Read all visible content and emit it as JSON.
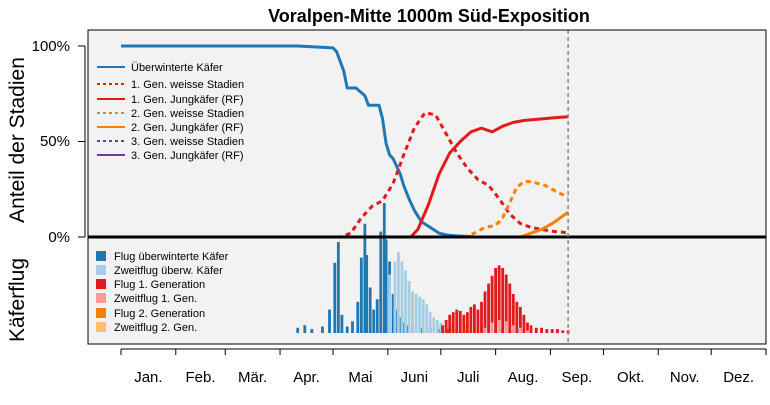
{
  "chart_data": {
    "type": "line",
    "title": "Voralpen-Mitte 1000m Süd-Exposition",
    "ylabel_top": "Anteil der Stadien",
    "ylabel_bottom": "Käferflug",
    "yticks": [
      "100%",
      "50%",
      "0%"
    ],
    "months": [
      "Jan.",
      "Feb.",
      "Mär.",
      "Apr.",
      "Mai",
      "Juni",
      "Juli",
      "Aug.",
      "Sep.",
      "Okt.",
      "Nov.",
      "Dez."
    ],
    "x_unit": "day of year",
    "xlim": [
      0,
      365
    ],
    "ylim_top": [
      0,
      1
    ],
    "current_day": 253,
    "grid": false,
    "legend_position": "top-left",
    "series": [
      {
        "name": "Überwinterte Käfer",
        "color": "#1f78b4",
        "dash": "solid",
        "x": [
          0,
          100,
          120,
          122,
          126,
          128,
          133,
          138,
          140,
          146,
          148,
          150,
          152,
          154,
          156,
          158,
          160,
          163,
          166,
          170,
          175,
          180,
          185,
          190,
          195,
          200
        ],
        "y": [
          1.0,
          1.0,
          0.99,
          0.97,
          0.87,
          0.78,
          0.78,
          0.74,
          0.69,
          0.69,
          0.62,
          0.49,
          0.43,
          0.41,
          0.37,
          0.33,
          0.27,
          0.2,
          0.14,
          0.08,
          0.05,
          0.02,
          0.01,
          0.006,
          0.003,
          0.0
        ]
      },
      {
        "name": "1. Gen. weisse Stadien",
        "color": "#e31a1c",
        "dash": "dotted",
        "x": [
          0,
          124,
          130,
          136,
          142,
          148,
          154,
          160,
          166,
          172,
          178,
          184,
          190,
          196,
          202,
          208,
          214,
          220,
          226,
          232,
          238,
          244,
          250,
          253
        ],
        "y": [
          0,
          0,
          0.02,
          0.1,
          0.16,
          0.19,
          0.28,
          0.43,
          0.57,
          0.65,
          0.64,
          0.54,
          0.44,
          0.36,
          0.3,
          0.27,
          0.2,
          0.12,
          0.07,
          0.05,
          0.04,
          0.03,
          0.025,
          0.02
        ]
      },
      {
        "name": "1. Gen. Jungkäfer (RF)",
        "color": "#e31a1c",
        "dash": "solid",
        "x": [
          0,
          164,
          168,
          174,
          180,
          186,
          192,
          198,
          204,
          210,
          216,
          222,
          228,
          234,
          240,
          246,
          253
        ],
        "y": [
          0,
          0,
          0.04,
          0.17,
          0.33,
          0.44,
          0.5,
          0.55,
          0.57,
          0.55,
          0.58,
          0.6,
          0.61,
          0.615,
          0.62,
          0.625,
          0.63
        ]
      },
      {
        "name": "2. Gen. weisse Stadien",
        "color": "#ff7f00",
        "dash": "dotted",
        "x": [
          0,
          194,
          200,
          206,
          212,
          216,
          220,
          224,
          228,
          232,
          236,
          240,
          244,
          248,
          253
        ],
        "y": [
          0,
          0,
          0.02,
          0.05,
          0.06,
          0.1,
          0.18,
          0.26,
          0.29,
          0.29,
          0.28,
          0.27,
          0.25,
          0.23,
          0.21
        ]
      },
      {
        "name": "2. Gen. Jungkäfer (RF)",
        "color": "#ff7f00",
        "dash": "solid",
        "x": [
          0,
          226,
          232,
          238,
          244,
          250,
          253
        ],
        "y": [
          0,
          0,
          0.02,
          0.04,
          0.07,
          0.11,
          0.13
        ]
      },
      {
        "name": "3. Gen. weisse Stadien",
        "color": "#6a3d9a",
        "dash": "dotted",
        "x": [
          0,
          253
        ],
        "y": [
          0,
          0
        ]
      },
      {
        "name": "3. Gen. Jungkäfer (RF)",
        "color": "#6a3d9a",
        "dash": "solid",
        "x": [
          0,
          253
        ],
        "y": [
          0,
          0
        ]
      }
    ],
    "flight_series": [
      {
        "name": "Flug überwinterte Käfer",
        "color": "#1f78b4",
        "points": [
          [
            100,
            0.04
          ],
          [
            104,
            0.06
          ],
          [
            108,
            0.03
          ],
          [
            114,
            0.05
          ],
          [
            118,
            0.18
          ],
          [
            121,
            0.54
          ],
          [
            123,
            0.7
          ],
          [
            125,
            0.14
          ],
          [
            128,
            0.05
          ],
          [
            131,
            0.09
          ],
          [
            134,
            0.24
          ],
          [
            136,
            0.58
          ],
          [
            138,
            0.84
          ],
          [
            139,
            0.6
          ],
          [
            141,
            0.35
          ],
          [
            143,
            0.18
          ],
          [
            145,
            0.26
          ],
          [
            147,
            0.78
          ],
          [
            149,
            1.0
          ],
          [
            150,
            0.72
          ],
          [
            152,
            0.55
          ],
          [
            154,
            0.3
          ],
          [
            156,
            0.18
          ],
          [
            158,
            0.12
          ],
          [
            160,
            0.08
          ],
          [
            162,
            0.06
          ],
          [
            165,
            0.06
          ],
          [
            170,
            0.04
          ],
          [
            175,
            0.04
          ],
          [
            180,
            0.03
          ],
          [
            185,
            0.03
          ],
          [
            190,
            0.02
          ],
          [
            195,
            0.02
          ],
          [
            200,
            0.02
          ],
          [
            205,
            0.015
          ],
          [
            210,
            0.01
          ],
          [
            215,
            0.01
          ],
          [
            220,
            0.01
          ],
          [
            225,
            0.01
          ],
          [
            230,
            0.005
          ]
        ]
      },
      {
        "name": "Zweitflug überw. Käfer",
        "color": "#a6cee3",
        "points": [
          [
            152,
            0.45
          ],
          [
            155,
            0.55
          ],
          [
            157,
            0.62
          ],
          [
            159,
            0.55
          ],
          [
            161,
            0.48
          ],
          [
            163,
            0.4
          ],
          [
            165,
            0.32
          ],
          [
            167,
            0.3
          ],
          [
            169,
            0.28
          ],
          [
            171,
            0.26
          ],
          [
            173,
            0.22
          ],
          [
            175,
            0.16
          ],
          [
            177,
            0.12
          ],
          [
            179,
            0.1
          ],
          [
            181,
            0.08
          ],
          [
            184,
            0.07
          ],
          [
            187,
            0.06
          ],
          [
            190,
            0.05
          ],
          [
            195,
            0.05
          ],
          [
            200,
            0.05
          ],
          [
            205,
            0.05
          ],
          [
            210,
            0.04
          ],
          [
            215,
            0.04
          ],
          [
            220,
            0.03
          ],
          [
            225,
            0.03
          ],
          [
            230,
            0.02
          ],
          [
            235,
            0.01
          ]
        ]
      },
      {
        "name": "Flug 1. Generation",
        "color": "#e31a1c",
        "points": [
          [
            182,
            0.06
          ],
          [
            184,
            0.1
          ],
          [
            186,
            0.14
          ],
          [
            188,
            0.16
          ],
          [
            190,
            0.18
          ],
          [
            192,
            0.17
          ],
          [
            194,
            0.14
          ],
          [
            196,
            0.16
          ],
          [
            198,
            0.2
          ],
          [
            200,
            0.22
          ],
          [
            202,
            0.18
          ],
          [
            204,
            0.24
          ],
          [
            206,
            0.32
          ],
          [
            208,
            0.38
          ],
          [
            210,
            0.44
          ],
          [
            212,
            0.5
          ],
          [
            214,
            0.52
          ],
          [
            216,
            0.5
          ],
          [
            218,
            0.45
          ],
          [
            220,
            0.38
          ],
          [
            222,
            0.3
          ],
          [
            224,
            0.24
          ],
          [
            226,
            0.2
          ],
          [
            228,
            0.14
          ],
          [
            230,
            0.08
          ],
          [
            232,
            0.06
          ],
          [
            235,
            0.04
          ],
          [
            238,
            0.04
          ],
          [
            241,
            0.03
          ],
          [
            244,
            0.03
          ],
          [
            247,
            0.03
          ],
          [
            250,
            0.02
          ],
          [
            253,
            0.02
          ]
        ]
      },
      {
        "name": "Zweitflug 1. Gen.",
        "color": "#fb9a99",
        "points": [
          [
            206,
            0.04
          ],
          [
            210,
            0.08
          ],
          [
            214,
            0.1
          ],
          [
            218,
            0.09
          ],
          [
            222,
            0.06
          ],
          [
            226,
            0.04
          ],
          [
            230,
            0.02
          ]
        ]
      },
      {
        "name": "Flug 2. Generation",
        "color": "#ff7f00",
        "points": []
      },
      {
        "name": "Zweitflug 2. Gen.",
        "color": "#fdbf6f",
        "points": []
      }
    ]
  }
}
